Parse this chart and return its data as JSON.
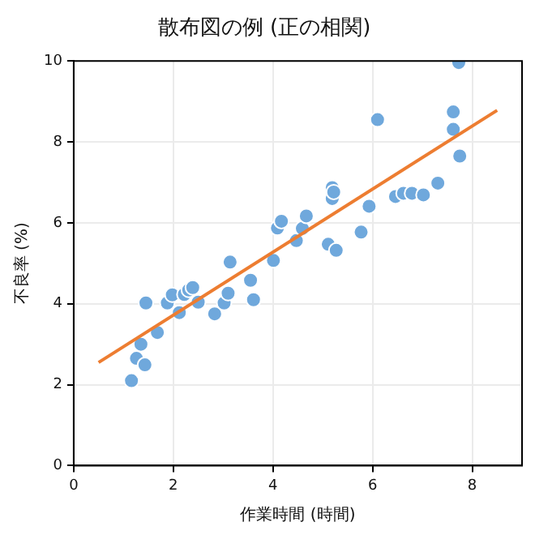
{
  "chart_data": {
    "type": "scatter",
    "title": "散布図の例 (正の相関)",
    "xlabel": "作業時間 (時間)",
    "ylabel": "不良率 (%)",
    "xlim": [
      0,
      9
    ],
    "xticks": [
      0,
      2,
      4,
      6,
      8
    ],
    "ylim": [
      0,
      10
    ],
    "yticks": [
      0,
      2,
      4,
      6,
      8,
      10
    ],
    "grid": true,
    "legend": false,
    "marker": "circle",
    "series": [
      {
        "type": "scatter",
        "color": "#6fa8dc",
        "x": [
          1.16,
          1.26,
          1.43,
          1.35,
          1.45,
          1.68,
          1.88,
          1.98,
          2.12,
          2.22,
          2.31,
          2.39,
          2.5,
          2.83,
          3.02,
          3.1,
          3.14,
          3.55,
          3.61,
          4.01,
          4.09,
          4.17,
          4.47,
          4.59,
          4.67,
          5.11,
          5.19,
          5.19,
          5.22,
          5.27,
          5.77,
          5.93,
          6.1,
          6.46,
          6.62,
          6.79,
          7.02,
          7.31,
          7.62,
          7.62,
          7.75,
          7.73
        ],
        "values": [
          2.1,
          2.65,
          2.49,
          3.0,
          4.02,
          3.29,
          4.02,
          4.22,
          3.78,
          4.23,
          4.34,
          4.4,
          4.04,
          3.75,
          4.02,
          4.26,
          5.03,
          4.58,
          4.1,
          5.07,
          5.87,
          6.04,
          5.56,
          5.86,
          6.17,
          5.47,
          6.87,
          6.6,
          6.76,
          5.32,
          5.77,
          6.41,
          8.55,
          6.65,
          6.73,
          6.73,
          6.69,
          6.98,
          8.31,
          8.74,
          7.65,
          9.96
        ]
      },
      {
        "type": "line",
        "color": "#ed7d31",
        "marker": "none",
        "x": [
          0.5,
          8.5
        ],
        "values": [
          2.55,
          8.78
        ]
      }
    ]
  }
}
